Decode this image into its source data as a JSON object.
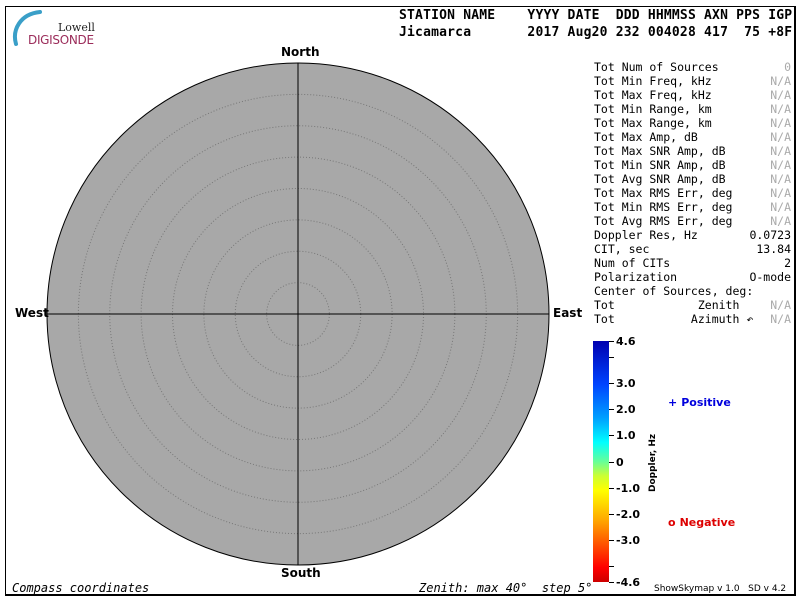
{
  "logo": {
    "line1": "Lowell",
    "line2": "DIGISONDE"
  },
  "header": {
    "labels": "STATION NAME    YYYY DATE  DDD HHMMSS AXN PPS IGP",
    "values": "Jicamarca       2017 Aug20 232 004028 417  75 +8F"
  },
  "plot": {
    "north": "North",
    "south": "South",
    "east": "East",
    "west": "West",
    "coord_label": "Compass coordinates",
    "zenith_label": "Zenith: max 40°  step 5°",
    "zenith_max_deg": 40,
    "zenith_step_deg": 5,
    "background_color": "#a8a8a8"
  },
  "stats": [
    {
      "label": "Tot Num of Sources",
      "value": "0",
      "na": true
    },
    {
      "label": "Tot Min Freq, kHz",
      "value": "N/A",
      "na": true
    },
    {
      "label": "Tot Max Freq, kHz",
      "value": "N/A",
      "na": true
    },
    {
      "label": "Tot Min Range, km",
      "value": "N/A",
      "na": true
    },
    {
      "label": "Tot Max Range, km",
      "value": "N/A",
      "na": true
    },
    {
      "label": "Tot Max Amp, dB",
      "value": "N/A",
      "na": true
    },
    {
      "label": "Tot Max SNR Amp, dB",
      "value": "N/A",
      "na": true
    },
    {
      "label": "Tot Min SNR Amp, dB",
      "value": "N/A",
      "na": true
    },
    {
      "label": "Tot Avg SNR Amp, dB",
      "value": "N/A",
      "na": true
    },
    {
      "label": "Tot Max RMS Err, deg",
      "value": "N/A",
      "na": true
    },
    {
      "label": "Tot Min RMS Err, deg",
      "value": "N/A",
      "na": true
    },
    {
      "label": "Tot Avg RMS Err, deg",
      "value": "N/A",
      "na": true
    },
    {
      "label": "Doppler Res, Hz",
      "value": "0.0723",
      "na": false
    },
    {
      "label": "CIT, sec",
      "value": "13.84",
      "na": false
    },
    {
      "label": "Num of CITs",
      "value": "2",
      "na": false
    },
    {
      "label": "Polarization",
      "value": "O-mode",
      "na": false
    },
    {
      "label": "Center of Sources, deg:",
      "value": "",
      "na": false
    },
    {
      "label": "Tot            Zenith",
      "value": "N/A",
      "na": true
    },
    {
      "label": "Tot           Azimuth ↶",
      "value": "N/A",
      "na": true
    }
  ],
  "colorbar": {
    "title": "Doppler, Hz",
    "max": 4.6,
    "min": -4.6,
    "ticks": [
      {
        "v": 4.6,
        "t": "4.6"
      },
      {
        "v": 3.0,
        "t": "3.0"
      },
      {
        "v": 2.0,
        "t": "2.0"
      },
      {
        "v": 1.0,
        "t": "1.0"
      },
      {
        "v": 0,
        "t": "0"
      },
      {
        "v": -1.0,
        "t": "-1.0"
      },
      {
        "v": -2.0,
        "t": "-2.0"
      },
      {
        "v": -3.0,
        "t": "-3.0"
      },
      {
        "v": -4.6,
        "t": "-4.6"
      }
    ],
    "minor_ticks": [
      4.0,
      -4.0
    ]
  },
  "legend": {
    "positive": {
      "symbol": "+",
      "label": "Positive",
      "color": "#0000dd"
    },
    "negative": {
      "symbol": "o",
      "label": "Negative",
      "color": "#dd0000"
    }
  },
  "version": "ShowSkymap v 1.0   SD v 4.2"
}
